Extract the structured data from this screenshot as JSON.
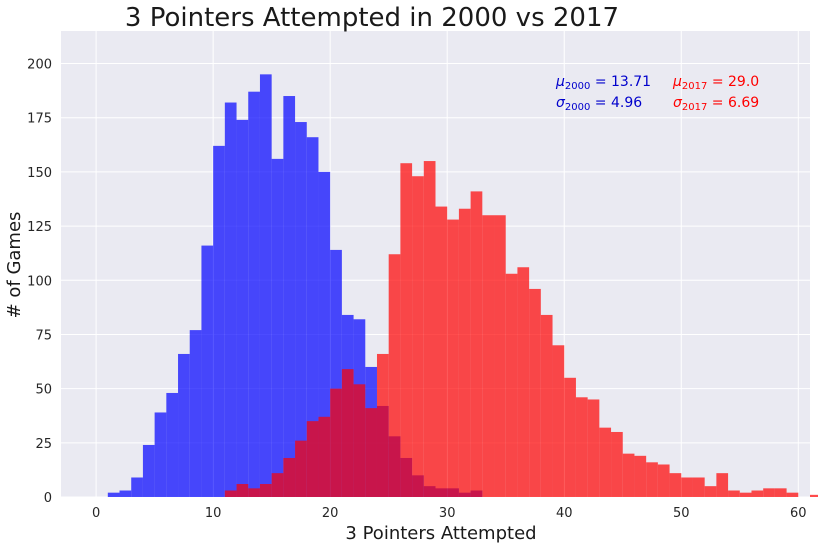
{
  "chart_data": {
    "type": "histogram",
    "title": "3 Pointers Attempted in 2000 vs 2017",
    "xlabel": "3 Pointers Attempted",
    "ylabel": "# of Games",
    "xlim": [
      -3,
      61
    ],
    "ylim": [
      0,
      215
    ],
    "xticks": [
      0,
      10,
      20,
      30,
      40,
      50,
      60
    ],
    "yticks": [
      0,
      25,
      50,
      75,
      100,
      125,
      150,
      175,
      200
    ],
    "grid": true,
    "bin_width": 1,
    "series": [
      {
        "name": "2000",
        "color": "#0000ff",
        "opacity": 0.7,
        "bins_start": 1,
        "values": [
          2,
          3,
          9,
          24,
          39,
          48,
          66,
          77,
          116,
          162,
          182,
          174,
          187,
          195,
          156,
          185,
          173,
          166,
          150,
          114,
          84,
          82,
          60,
          42,
          28,
          18,
          10,
          5,
          4,
          4,
          2,
          3
        ]
      },
      {
        "name": "2017",
        "color": "#ff0000",
        "opacity": 0.7,
        "bins_start": 11,
        "values": [
          3,
          6,
          4,
          6,
          11,
          18,
          26,
          35,
          37,
          50,
          59,
          52,
          41,
          66,
          112,
          154,
          148,
          155,
          134,
          128,
          133,
          141,
          130,
          130,
          103,
          106,
          96,
          84,
          70,
          55,
          46,
          45,
          32,
          30,
          20,
          19,
          16,
          15,
          11,
          9,
          9,
          5,
          11,
          3,
          2,
          3,
          4,
          4,
          2,
          0,
          1,
          1,
          0,
          2,
          1
        ]
      }
    ],
    "annotations": {
      "s2000": {
        "mu_symbol": "μ",
        "sigma_symbol": "σ",
        "year": "2000",
        "mu_text": " = 13.71",
        "sigma_text": " = 4.96",
        "color": "#0000cc"
      },
      "s2017": {
        "mu_symbol": "μ",
        "sigma_symbol": "σ",
        "year": "2017",
        "mu_text": " = 29.0",
        "sigma_text": " = 6.69",
        "color": "#ff0000"
      }
    },
    "style": {
      "plot_bg": "#eaeaf2",
      "grid_color": "#ffffff"
    }
  }
}
